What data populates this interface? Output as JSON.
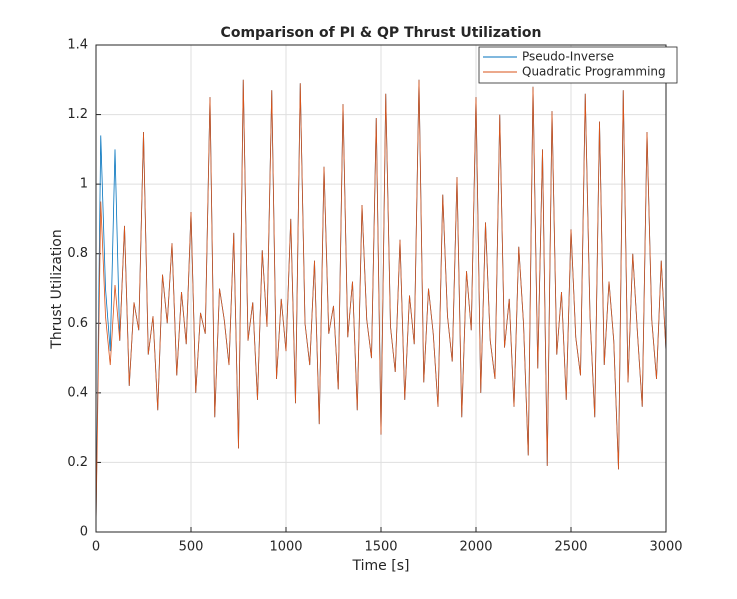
{
  "chart_data": {
    "type": "line",
    "title": "Comparison of PI & QP Thrust Utilization",
    "x_label": "Time [s]",
    "y_label": "Thrust Utilization",
    "x": [
      0,
      25,
      50,
      75,
      100,
      125,
      150,
      175,
      200,
      225,
      250,
      275,
      300,
      325,
      350,
      375,
      400,
      425,
      450,
      475,
      500,
      525,
      550,
      575,
      600,
      625,
      650,
      675,
      700,
      725,
      750,
      775,
      800,
      825,
      850,
      875,
      900,
      925,
      950,
      975,
      1000,
      1025,
      1050,
      1075,
      1100,
      1125,
      1150,
      1175,
      1200,
      1225,
      1250,
      1275,
      1300,
      1325,
      1350,
      1375,
      1400,
      1425,
      1450,
      1475,
      1500,
      1525,
      1550,
      1575,
      1600,
      1625,
      1650,
      1675,
      1700,
      1725,
      1750,
      1775,
      1800,
      1825,
      1850,
      1875,
      1900,
      1925,
      1950,
      1975,
      2000,
      2025,
      2050,
      2075,
      2100,
      2125,
      2150,
      2175,
      2200,
      2225,
      2250,
      2275,
      2300,
      2325,
      2350,
      2375,
      2400,
      2425,
      2450,
      2475,
      2500,
      2525,
      2550,
      2575,
      2600,
      2625,
      2650,
      2675,
      2700,
      2725,
      2750,
      2775,
      2800,
      2825,
      2850,
      2875,
      2900,
      2925,
      2950,
      2975,
      3000
    ],
    "series": [
      {
        "name": "Pseudo-Inverse",
        "color": "#0072bd",
        "values": [
          0.02,
          1.14,
          0.7,
          0.52,
          1.1,
          0.55,
          0.88,
          0.42,
          0.66,
          0.58,
          1.15,
          0.51,
          0.62,
          0.35,
          0.74,
          0.6,
          0.83,
          0.45,
          0.69,
          0.54,
          0.92,
          0.4,
          0.63,
          0.57,
          1.25,
          0.33,
          0.7,
          0.61,
          0.48,
          0.86,
          0.24,
          1.3,
          0.55,
          0.66,
          0.38,
          0.81,
          0.59,
          1.27,
          0.44,
          0.67,
          0.52,
          0.9,
          0.37,
          1.29,
          0.6,
          0.48,
          0.78,
          0.31,
          1.05,
          0.57,
          0.65,
          0.41,
          1.23,
          0.56,
          0.72,
          0.35,
          0.94,
          0.61,
          0.5,
          1.19,
          0.28,
          1.26,
          0.59,
          0.46,
          0.84,
          0.38,
          0.68,
          0.54,
          1.3,
          0.43,
          0.7,
          0.57,
          0.36,
          0.97,
          0.62,
          0.49,
          1.02,
          0.33,
          0.75,
          0.58,
          1.25,
          0.4,
          0.89,
          0.55,
          0.44,
          1.2,
          0.53,
          0.67,
          0.36,
          0.82,
          0.6,
          0.22,
          1.28,
          0.47,
          1.1,
          0.19,
          1.21,
          0.51,
          0.69,
          0.38,
          0.87,
          0.56,
          0.45,
          1.26,
          0.62,
          0.33,
          1.18,
          0.48,
          0.72,
          0.55,
          0.18,
          1.27,
          0.43,
          0.8,
          0.57,
          0.36,
          1.15,
          0.61,
          0.44,
          0.78,
          0.52
        ]
      },
      {
        "name": "Quadratic Programming",
        "color": "#d95319",
        "values": [
          0.02,
          0.95,
          0.62,
          0.48,
          0.71,
          0.55,
          0.88,
          0.42,
          0.66,
          0.58,
          1.15,
          0.51,
          0.62,
          0.35,
          0.74,
          0.6,
          0.83,
          0.45,
          0.69,
          0.54,
          0.92,
          0.4,
          0.63,
          0.57,
          1.25,
          0.33,
          0.7,
          0.61,
          0.48,
          0.86,
          0.24,
          1.3,
          0.55,
          0.66,
          0.38,
          0.81,
          0.59,
          1.27,
          0.44,
          0.67,
          0.52,
          0.9,
          0.37,
          1.29,
          0.6,
          0.48,
          0.78,
          0.31,
          1.05,
          0.57,
          0.65,
          0.41,
          1.23,
          0.56,
          0.72,
          0.35,
          0.94,
          0.61,
          0.5,
          1.19,
          0.28,
          1.26,
          0.59,
          0.46,
          0.84,
          0.38,
          0.68,
          0.54,
          1.3,
          0.43,
          0.7,
          0.57,
          0.36,
          0.97,
          0.62,
          0.49,
          1.02,
          0.33,
          0.75,
          0.58,
          1.25,
          0.4,
          0.89,
          0.55,
          0.44,
          1.2,
          0.53,
          0.67,
          0.36,
          0.82,
          0.6,
          0.22,
          1.28,
          0.47,
          1.1,
          0.19,
          1.21,
          0.51,
          0.69,
          0.38,
          0.87,
          0.56,
          0.45,
          1.26,
          0.62,
          0.33,
          1.18,
          0.48,
          0.72,
          0.55,
          0.18,
          1.27,
          0.43,
          0.8,
          0.57,
          0.36,
          1.15,
          0.61,
          0.44,
          0.78,
          0.52
        ]
      }
    ],
    "xlim": [
      0,
      3000
    ],
    "xticks": [
      0,
      500,
      1000,
      1500,
      2000,
      2500,
      3000
    ],
    "ylim": [
      0,
      1.4
    ],
    "yticks": [
      0,
      0.2,
      0.4,
      0.6,
      0.8,
      1,
      1.2,
      1.4
    ],
    "grid": true,
    "legend": "northeast"
  }
}
